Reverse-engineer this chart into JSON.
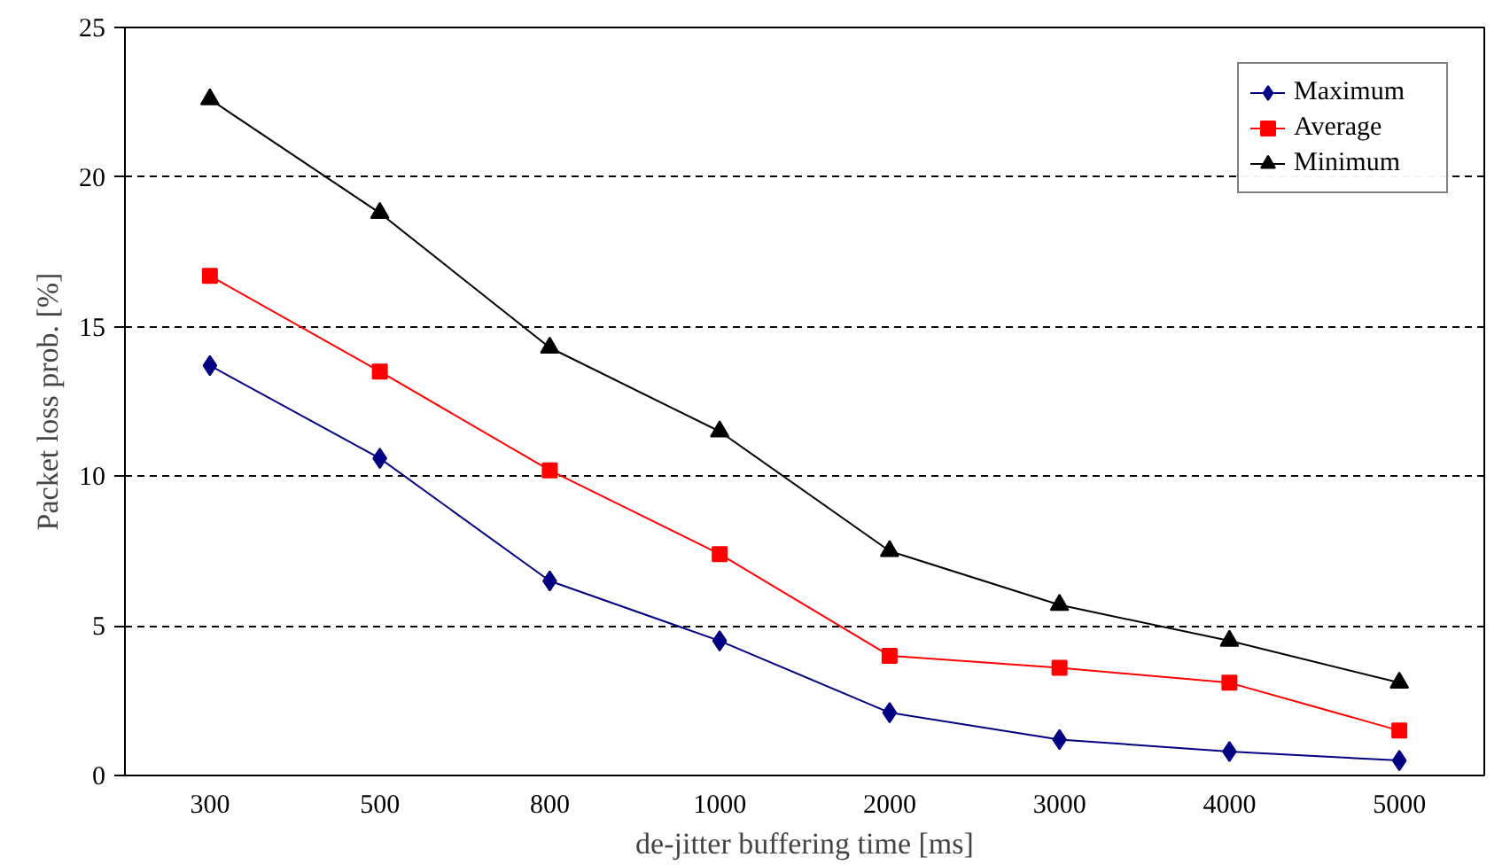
{
  "chart_data": {
    "type": "line",
    "xlabel": "de-jitter buffering time [ms]",
    "ylabel": "Packet loss prob. [%]",
    "categories": [
      "300",
      "500",
      "800",
      "1000",
      "2000",
      "3000",
      "4000",
      "5000"
    ],
    "ylim": [
      0,
      25
    ],
    "yticks": [
      0,
      5,
      10,
      15,
      20,
      25
    ],
    "grid": "y",
    "legend": "top right",
    "line_style": "solid",
    "series": [
      {
        "name": "Maximum",
        "color": "#000080",
        "marker": "diamond",
        "values": [
          13.7,
          10.6,
          6.5,
          4.5,
          2.1,
          1.2,
          0.8,
          0.5
        ]
      },
      {
        "name": "Average",
        "color": "#ff0000",
        "marker": "square",
        "values": [
          16.7,
          13.5,
          10.2,
          7.4,
          4.0,
          3.6,
          3.1,
          1.5
        ]
      },
      {
        "name": "Minimum",
        "color": "#000000",
        "marker": "triangle",
        "values": [
          22.6,
          18.8,
          14.3,
          11.5,
          7.5,
          5.7,
          4.5,
          3.1
        ]
      }
    ]
  }
}
